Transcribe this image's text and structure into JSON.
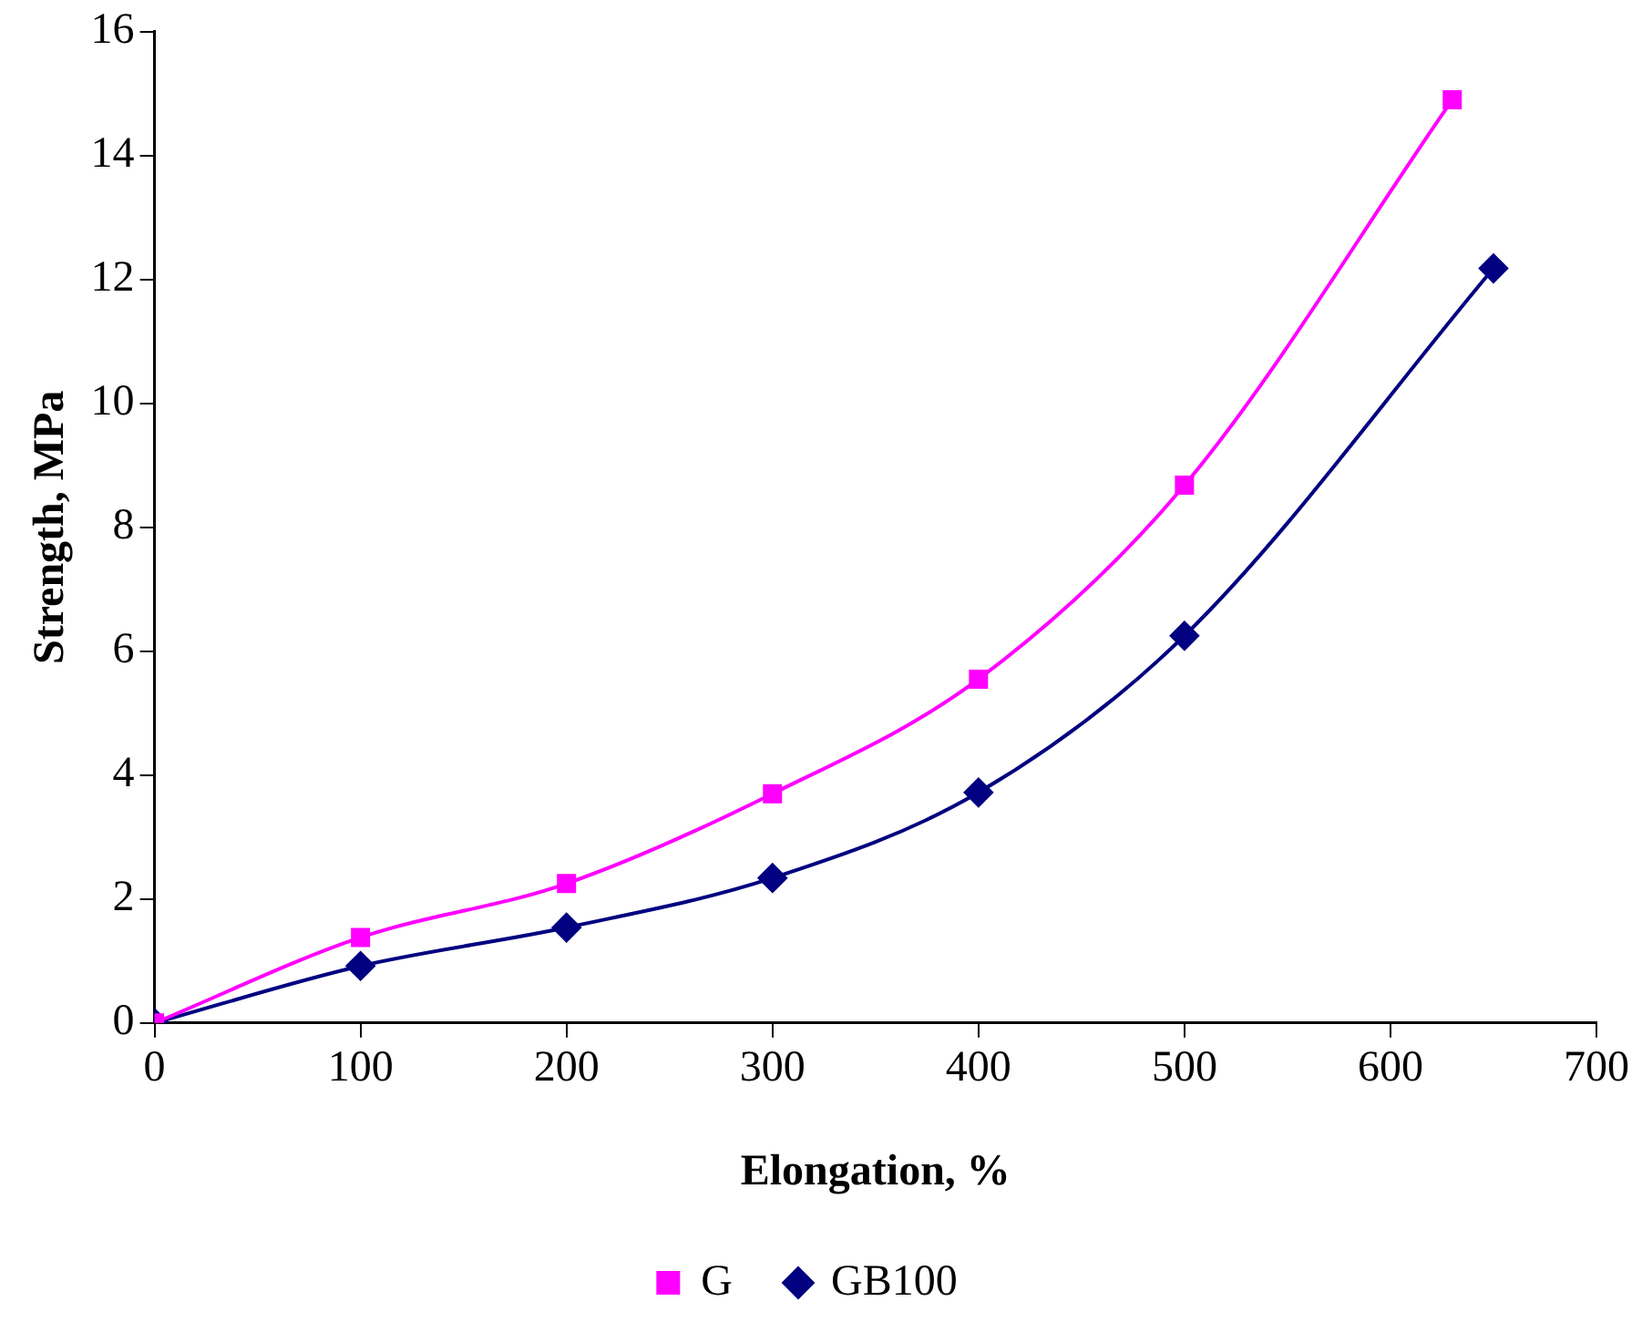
{
  "chart_data": {
    "type": "line",
    "xlabel": "Elongation, %",
    "ylabel": "Strength, MPa",
    "xlim": [
      0,
      700
    ],
    "xticks": [
      0,
      100,
      200,
      300,
      400,
      500,
      600,
      700
    ],
    "ylim": [
      0,
      16
    ],
    "yticks": [
      0,
      2,
      4,
      6,
      8,
      10,
      12,
      14,
      16
    ],
    "grid": false,
    "legend": "bottom",
    "line_style": "solid",
    "series": [
      {
        "name": "G",
        "color": "#ff00ff",
        "marker": "square",
        "x": [
          0,
          100,
          200,
          300,
          400,
          500,
          630
        ],
        "values": [
          0,
          1.38,
          2.25,
          3.7,
          5.55,
          8.68,
          14.9
        ]
      },
      {
        "name": "GB100",
        "color": "#000080",
        "marker": "diamond",
        "x": [
          0,
          100,
          200,
          300,
          400,
          500,
          650
        ],
        "values": [
          0,
          0.92,
          1.54,
          2.34,
          3.72,
          6.25,
          12.18
        ]
      }
    ]
  }
}
